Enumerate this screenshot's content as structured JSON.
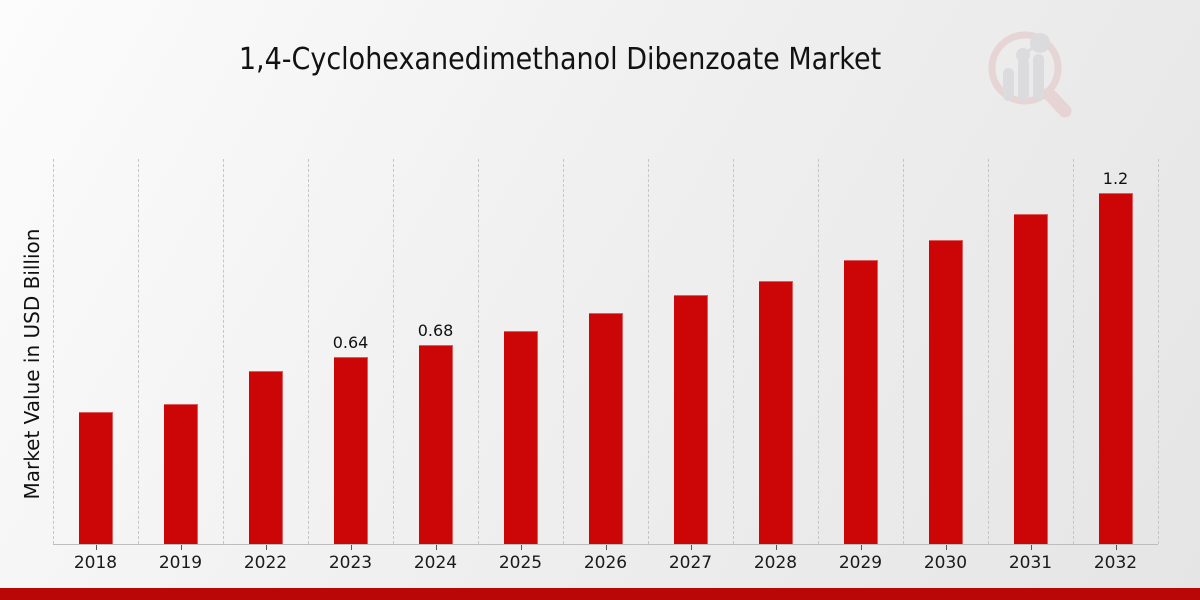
{
  "header": {
    "title": "1,4-Cyclohexanedimethanol Dibenzoate Market"
  },
  "chart_data": {
    "type": "bar",
    "title": "1,4-Cyclohexanedimethanol Dibenzoate Market",
    "xlabel": "",
    "ylabel": "Market Value in USD Billion",
    "categories": [
      "2018",
      "2019",
      "2022",
      "2023",
      "2024",
      "2025",
      "2026",
      "2027",
      "2028",
      "2029",
      "2030",
      "2031",
      "2032"
    ],
    "values": [
      0.45,
      0.48,
      0.59,
      0.64,
      0.68,
      0.73,
      0.79,
      0.85,
      0.9,
      0.97,
      1.04,
      1.13,
      1.2
    ],
    "bar_labels": [
      "",
      "",
      "",
      "0.64",
      "0.68",
      "",
      "",
      "",
      "",
      "",
      "",
      "",
      "1.2"
    ],
    "ylim": [
      0,
      1.32
    ],
    "grid": "vertical-dashed",
    "legend": "none",
    "bar_color": "#cc0606"
  },
  "icons": {
    "watermark": "magnifier-growth-chart-logo"
  },
  "colors": {
    "bar": "#cc0606",
    "footer_bar": "#b90606",
    "watermark_ring": "#e0b2b3",
    "watermark_gray": "#c3c3c9",
    "gridline": "#c6c6c6",
    "axis": "#bdbdbd"
  }
}
